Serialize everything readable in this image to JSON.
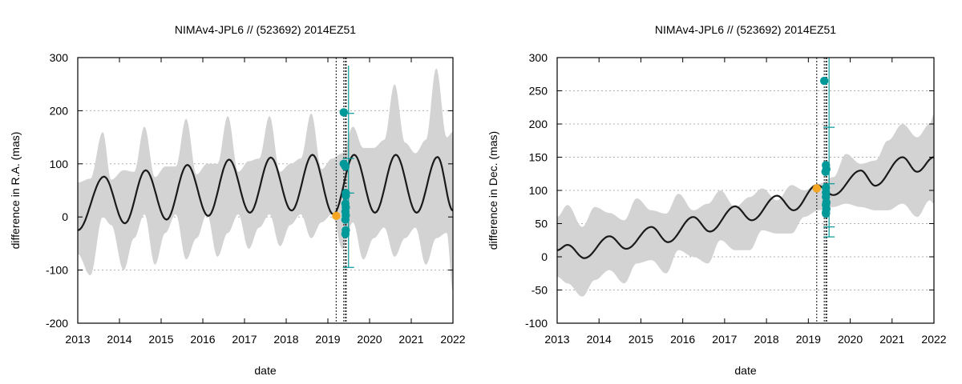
{
  "chart_data": [
    {
      "type": "line",
      "title": "NIMAv4-JPL6 // (523692) 2014EZ51",
      "xlabel": "date",
      "ylabel": "difference in R.A. (mas)",
      "xlim": [
        2013,
        2022
      ],
      "ylim": [
        -200,
        300
      ],
      "xticks": [
        "2013",
        "2014",
        "2015",
        "2016",
        "2017",
        "2018",
        "2019",
        "2020",
        "2021",
        "2022"
      ],
      "yticks": [
        "-200",
        "-100",
        "0",
        "100",
        "200",
        "300"
      ],
      "grid": "horizontal-dashed",
      "series": [
        {
          "kind": "band",
          "color": "#d3d3d3",
          "x": [
            2013.0,
            2013.3,
            2013.6,
            2013.8,
            2014.1,
            2014.35,
            2014.6,
            2014.85,
            2015.1,
            2015.35,
            2015.6,
            2015.85,
            2016.1,
            2016.35,
            2016.6,
            2016.85,
            2017.1,
            2017.35,
            2017.6,
            2017.85,
            2018.1,
            2018.35,
            2018.6,
            2018.85,
            2019.1,
            2019.35,
            2019.6,
            2019.85,
            2020.1,
            2020.35,
            2020.6,
            2020.85,
            2021.1,
            2021.35,
            2021.6,
            2021.85,
            2022.0
          ],
          "upper": [
            65,
            72,
            160,
            70,
            88,
            85,
            170,
            75,
            95,
            95,
            185,
            80,
            100,
            100,
            190,
            85,
            105,
            110,
            190,
            85,
            100,
            110,
            195,
            90,
            110,
            120,
            170,
            130,
            130,
            145,
            250,
            140,
            120,
            145,
            280,
            150,
            160
          ],
          "lower": [
            -70,
            -110,
            0,
            -15,
            -100,
            -40,
            5,
            -90,
            -30,
            5,
            -80,
            -40,
            5,
            -75,
            -30,
            5,
            -60,
            -20,
            5,
            -55,
            -15,
            5,
            -40,
            -10,
            5,
            -60,
            -10,
            -80,
            -40,
            -20,
            -75,
            -40,
            -20,
            -90,
            -40,
            -30,
            -140
          ]
        },
        {
          "kind": "line",
          "color": "#1a1a1a",
          "period": 1.0,
          "peak_year": 2013.63,
          "x": [
            2013.0,
            2013.63,
            2014.13,
            2014.63,
            2015.13,
            2015.63,
            2016.13,
            2016.63,
            2017.13,
            2017.63,
            2018.13,
            2018.63,
            2019.13,
            2019.63,
            2020.13,
            2020.63,
            2021.13,
            2021.63,
            2022.0
          ],
          "y": [
            -25,
            76,
            -12,
            88,
            -5,
            98,
            2,
            108,
            8,
            112,
            12,
            117,
            5,
            117,
            8,
            117,
            8,
            113,
            12
          ]
        },
        {
          "kind": "points",
          "color": "#f5a623",
          "x": [
            2019.2
          ],
          "y": [
            2
          ]
        },
        {
          "kind": "points",
          "color": "#009999",
          "x": [
            2019.38,
            2019.38,
            2019.42,
            2019.43,
            2019.43,
            2019.42,
            2019.43,
            2019.42,
            2019.43,
            2019.42,
            2019.43,
            2019.42
          ],
          "y": [
            197,
            100,
            95,
            45,
            40,
            25,
            18,
            10,
            3,
            -5,
            -25,
            -32
          ],
          "error_low": -95,
          "error_high": 285
        }
      ],
      "vlines": [
        2019.2,
        2019.38,
        2019.42,
        2019.44
      ]
    },
    {
      "type": "line",
      "title": "NIMAv4-JPL6 // (523692) 2014EZ51",
      "xlabel": "date",
      "ylabel": "difference in Dec. (mas)",
      "xlim": [
        2013,
        2022
      ],
      "ylim": [
        -100,
        300
      ],
      "xticks": [
        "2013",
        "2014",
        "2015",
        "2016",
        "2017",
        "2018",
        "2019",
        "2020",
        "2021",
        "2022"
      ],
      "yticks": [
        "-100",
        "-50",
        "0",
        "50",
        "100",
        "150",
        "200",
        "250",
        "300"
      ],
      "grid": "horizontal-dashed",
      "series": [
        {
          "kind": "band",
          "color": "#d3d3d3",
          "x": [
            2013.0,
            2013.25,
            2013.6,
            2013.9,
            2014.25,
            2014.6,
            2014.9,
            2015.25,
            2015.6,
            2015.9,
            2016.25,
            2016.6,
            2016.9,
            2017.25,
            2017.6,
            2017.9,
            2018.25,
            2018.6,
            2018.9,
            2019.25,
            2019.6,
            2019.9,
            2020.25,
            2020.6,
            2020.9,
            2021.25,
            2021.6,
            2021.9,
            2022.0
          ],
          "upper": [
            60,
            78,
            45,
            75,
            66,
            55,
            88,
            70,
            65,
            95,
            70,
            80,
            100,
            75,
            90,
            103,
            85,
            108,
            100,
            110,
            120,
            155,
            140,
            145,
            175,
            200,
            180,
            200,
            215
          ],
          "lower": [
            -30,
            -40,
            -60,
            -35,
            -20,
            -40,
            -10,
            -5,
            -25,
            10,
            0,
            -10,
            25,
            10,
            10,
            40,
            35,
            35,
            60,
            70,
            75,
            80,
            75,
            70,
            70,
            80,
            60,
            85,
            80
          ]
        },
        {
          "kind": "line",
          "color": "#1a1a1a",
          "x": [
            2013.0,
            2013.25,
            2013.65,
            2014.25,
            2014.65,
            2015.25,
            2015.65,
            2016.25,
            2016.65,
            2017.25,
            2017.65,
            2018.25,
            2018.65,
            2019.2,
            2019.6,
            2020.25,
            2020.6,
            2021.25,
            2021.6,
            2022.0
          ],
          "y": [
            10,
            18,
            -2,
            31,
            12,
            45,
            22,
            60,
            38,
            76,
            55,
            92,
            70,
            108,
            93,
            130,
            107,
            150,
            128,
            150
          ]
        },
        {
          "kind": "points",
          "color": "#f5a623",
          "x": [
            2019.2
          ],
          "y": [
            103
          ]
        },
        {
          "kind": "points",
          "color": "#009999",
          "x": [
            2019.38,
            2019.42,
            2019.43,
            2019.41,
            2019.42,
            2019.42,
            2019.42,
            2019.43,
            2019.42,
            2019.43,
            2019.42,
            2019.42
          ],
          "y": [
            265,
            138,
            132,
            128,
            104,
            97,
            90,
            82,
            78,
            72,
            67,
            65
          ],
          "error_low": 30,
          "error_high": 300
        }
      ],
      "vlines": [
        2019.2,
        2019.38,
        2019.42,
        2019.44
      ]
    }
  ]
}
